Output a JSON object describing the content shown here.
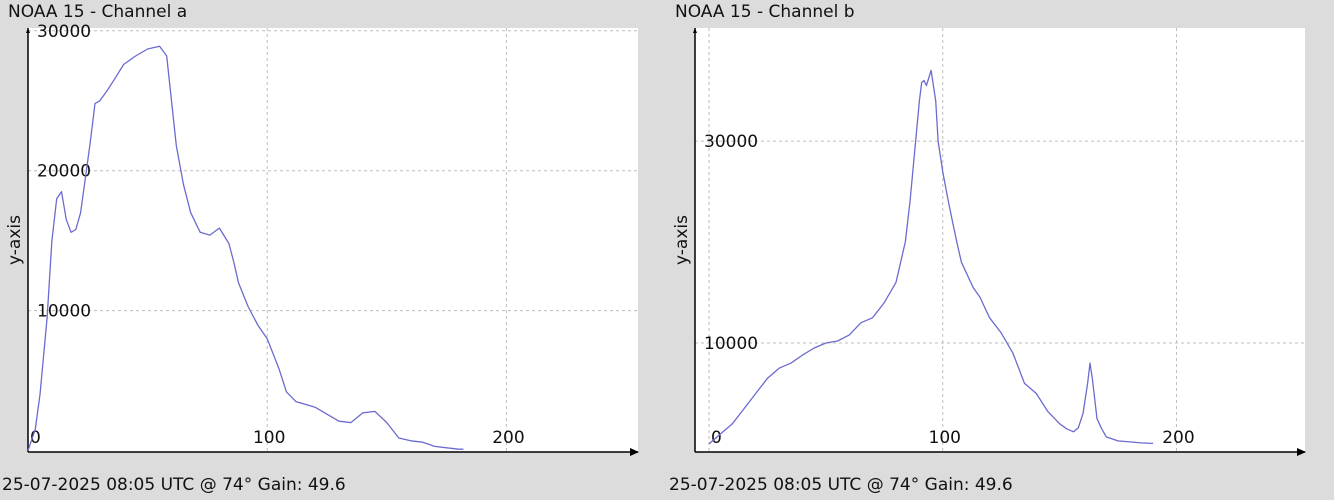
{
  "colors": {
    "background": "#dcdcdc",
    "plot_bg": "#ffffff",
    "line": "#6b6bd0",
    "grid": "#bdbdbd",
    "axis": "#000000"
  },
  "panels": [
    {
      "title": "NOAA 15 - Channel a",
      "footer": "25-07-2025 08:05 UTC @ 74° Gain: 49.6"
    },
    {
      "title": "NOAA 15 - Channel b",
      "footer": "25-07-2025 08:05 UTC @ 74° Gain: 49.6"
    }
  ],
  "chart_data": [
    {
      "type": "line",
      "title": "NOAA 15 - Channel a",
      "ylabel": "y-axis",
      "xlabel": "",
      "xlim": [
        0,
        255
      ],
      "ylim": [
        -100,
        30200
      ],
      "xticks": [
        0,
        100,
        200
      ],
      "yticks": [
        10000,
        20000,
        30000
      ],
      "grid": true,
      "series": [
        {
          "x": [
            0,
            3,
            5,
            8,
            10,
            12,
            14,
            16,
            18,
            20,
            22,
            24,
            26,
            28,
            30,
            33,
            36,
            40,
            45,
            50,
            55,
            58,
            60,
            62,
            65,
            68,
            72,
            76,
            80,
            84,
            86,
            88,
            92,
            96,
            100,
            105,
            108,
            112,
            116,
            120,
            125,
            130,
            135,
            140,
            145,
            150,
            155,
            160,
            165,
            170,
            175,
            180,
            182
          ],
          "y": [
            0,
            1500,
            4000,
            9500,
            15000,
            18000,
            18500,
            16500,
            15600,
            15800,
            17000,
            19500,
            22000,
            24800,
            25000,
            25700,
            26500,
            27600,
            28200,
            28700,
            28900,
            28200,
            25000,
            21800,
            19000,
            17000,
            15600,
            15400,
            15900,
            14800,
            13500,
            12000,
            10300,
            9000,
            8000,
            5800,
            4200,
            3500,
            3300,
            3100,
            2600,
            2100,
            2000,
            2700,
            2800,
            2000,
            900,
            700,
            600,
            300,
            200,
            100,
            100
          ]
        }
      ]
    },
    {
      "type": "line",
      "title": "NOAA 15 - Channel b",
      "ylabel": "y-axis",
      "xlabel": "",
      "xlim": [
        -6,
        255
      ],
      "ylim": [
        -800,
        41200
      ],
      "xticks": [
        0,
        100,
        200
      ],
      "yticks": [
        10000,
        30000
      ],
      "grid": true,
      "series": [
        {
          "x": [
            0,
            5,
            10,
            15,
            20,
            25,
            30,
            35,
            40,
            45,
            50,
            55,
            60,
            65,
            70,
            75,
            80,
            84,
            86,
            88,
            90,
            91,
            92,
            93,
            95,
            97,
            98,
            100,
            102,
            104,
            106,
            108,
            110,
            113,
            116,
            120,
            125,
            130,
            135,
            140,
            145,
            150,
            153,
            156,
            158,
            160,
            162,
            163,
            164,
            166,
            168,
            170,
            175,
            180,
            185,
            190
          ],
          "y": [
            0,
            1000,
            2000,
            3500,
            5000,
            6500,
            7500,
            8000,
            8800,
            9500,
            10000,
            10200,
            10800,
            12000,
            12500,
            14000,
            16000,
            20000,
            24000,
            29000,
            34000,
            35800,
            36000,
            35500,
            37000,
            34000,
            30000,
            27000,
            24500,
            22200,
            20000,
            18000,
            17000,
            15500,
            14500,
            12500,
            11000,
            9000,
            6000,
            5000,
            3200,
            2000,
            1500,
            1200,
            1600,
            3000,
            6000,
            8000,
            6500,
            2500,
            1500,
            700,
            300,
            200,
            100,
            50
          ]
        }
      ]
    }
  ]
}
